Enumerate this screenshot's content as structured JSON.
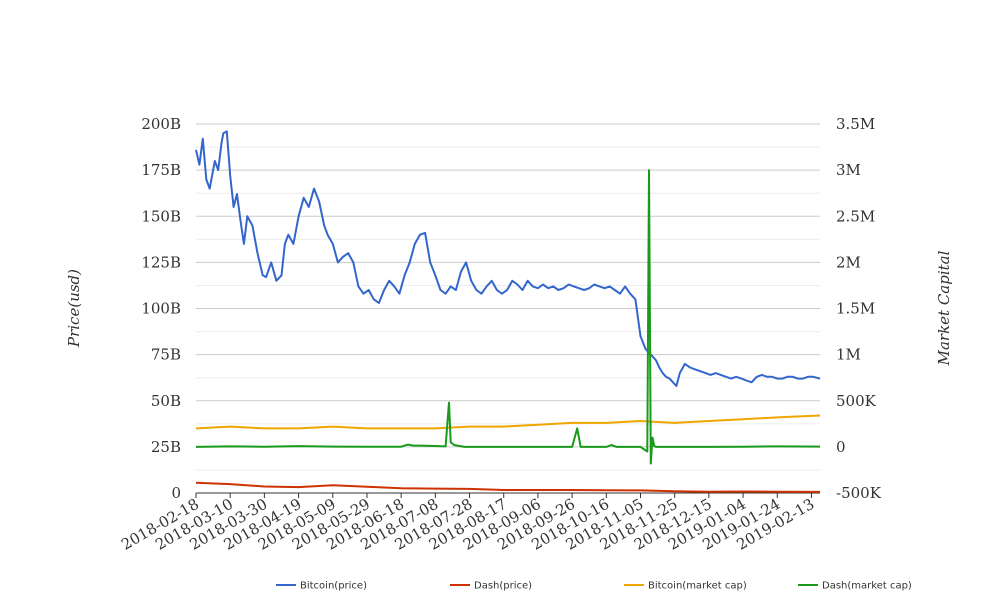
{
  "chart_data": {
    "type": "line",
    "title": "",
    "y_left_label": "Price(usd)",
    "y_right_label": "Market Capital",
    "y_left_ticks": [
      "0",
      "25B",
      "50B",
      "75B",
      "100B",
      "125B",
      "150B",
      "175B",
      "200B"
    ],
    "y_left_range": [
      0,
      200
    ],
    "y_left_unit": "B",
    "y_right_ticks": [
      "-500K",
      "0",
      "500K",
      "1M",
      "1.5M",
      "2M",
      "2.5M",
      "3M",
      "3.5M"
    ],
    "y_right_range": [
      -500000,
      3500000
    ],
    "x_ticks": [
      "2018-02-18",
      "2018-03-10",
      "2018-03-30",
      "2018-04-19",
      "2018-05-09",
      "2018-05-29",
      "2018-06-18",
      "2018-07-08",
      "2018-07-28",
      "2018-08-17",
      "2018-09-06",
      "2018-09-26",
      "2018-10-16",
      "2018-11-05",
      "2018-11-25",
      "2018-12-15",
      "2019-01-04",
      "2019-01-24",
      "2019-02-13"
    ],
    "x_range": [
      "2018-02-18",
      "2019-02-18"
    ],
    "grid": true,
    "legend_position": "bottom",
    "series": [
      {
        "name": "Bitcoin(price)",
        "axis": "left",
        "color": "#3366cc",
        "x": [
          "2018-02-18",
          "2018-02-20",
          "2018-02-22",
          "2018-02-24",
          "2018-02-26",
          "2018-03-01",
          "2018-03-03",
          "2018-03-05",
          "2018-03-06",
          "2018-03-08",
          "2018-03-10",
          "2018-03-12",
          "2018-03-14",
          "2018-03-16",
          "2018-03-18",
          "2018-03-20",
          "2018-03-23",
          "2018-03-26",
          "2018-03-29",
          "2018-03-31",
          "2018-04-03",
          "2018-04-06",
          "2018-04-09",
          "2018-04-11",
          "2018-04-13",
          "2018-04-16",
          "2018-04-19",
          "2018-04-22",
          "2018-04-25",
          "2018-04-28",
          "2018-05-01",
          "2018-05-04",
          "2018-05-06",
          "2018-05-09",
          "2018-05-12",
          "2018-05-15",
          "2018-05-18",
          "2018-05-21",
          "2018-05-24",
          "2018-05-27",
          "2018-05-30",
          "2018-06-02",
          "2018-06-05",
          "2018-06-08",
          "2018-06-11",
          "2018-06-14",
          "2018-06-17",
          "2018-06-20",
          "2018-06-23",
          "2018-06-26",
          "2018-06-29",
          "2018-07-02",
          "2018-07-05",
          "2018-07-08",
          "2018-07-11",
          "2018-07-14",
          "2018-07-17",
          "2018-07-20",
          "2018-07-23",
          "2018-07-26",
          "2018-07-29",
          "2018-08-01",
          "2018-08-04",
          "2018-08-07",
          "2018-08-10",
          "2018-08-13",
          "2018-08-16",
          "2018-08-19",
          "2018-08-22",
          "2018-08-25",
          "2018-08-28",
          "2018-08-31",
          "2018-09-03",
          "2018-09-06",
          "2018-09-09",
          "2018-09-12",
          "2018-09-15",
          "2018-09-18",
          "2018-09-21",
          "2018-09-24",
          "2018-09-27",
          "2018-09-30",
          "2018-10-03",
          "2018-10-06",
          "2018-10-09",
          "2018-10-12",
          "2018-10-15",
          "2018-10-18",
          "2018-10-21",
          "2018-10-24",
          "2018-10-27",
          "2018-10-30",
          "2018-11-02",
          "2018-11-05",
          "2018-11-08",
          "2018-11-11",
          "2018-11-14",
          "2018-11-16",
          "2018-11-18",
          "2018-11-20",
          "2018-11-22",
          "2018-11-24",
          "2018-11-26",
          "2018-11-28",
          "2018-12-01",
          "2018-12-04",
          "2018-12-07",
          "2018-12-10",
          "2018-12-13",
          "2018-12-16",
          "2018-12-19",
          "2018-12-22",
          "2018-12-25",
          "2018-12-28",
          "2018-12-31",
          "2019-01-03",
          "2019-01-06",
          "2019-01-09",
          "2019-01-12",
          "2019-01-15",
          "2019-01-18",
          "2019-01-21",
          "2019-01-24",
          "2019-01-27",
          "2019-01-30",
          "2019-02-02",
          "2019-02-05",
          "2019-02-08",
          "2019-02-11",
          "2019-02-14",
          "2019-02-18"
        ],
        "y": [
          186,
          178,
          192,
          170,
          165,
          180,
          175,
          190,
          195,
          196,
          172,
          155,
          162,
          148,
          135,
          150,
          145,
          130,
          118,
          117,
          125,
          115,
          118,
          135,
          140,
          135,
          150,
          160,
          155,
          165,
          158,
          145,
          140,
          135,
          125,
          128,
          130,
          125,
          112,
          108,
          110,
          105,
          103,
          110,
          115,
          112,
          108,
          118,
          125,
          135,
          140,
          141,
          125,
          118,
          110,
          108,
          112,
          110,
          120,
          125,
          115,
          110,
          108,
          112,
          115,
          110,
          108,
          110,
          115,
          113,
          110,
          115,
          112,
          111,
          113,
          111,
          112,
          110,
          111,
          113,
          112,
          111,
          110,
          111,
          113,
          112,
          111,
          112,
          110,
          108,
          112,
          108,
          105,
          85,
          78,
          75,
          72,
          68,
          65,
          63,
          62,
          60,
          58,
          65,
          70,
          68,
          67,
          66,
          65,
          64,
          65,
          64,
          63,
          62,
          63,
          62,
          61,
          60,
          63,
          64,
          63,
          63,
          62,
          62,
          63,
          63,
          62,
          62,
          63,
          63,
          62
        ]
      },
      {
        "name": "Dash(price)",
        "axis": "left",
        "color": "#cc3300",
        "x": [
          "2018-02-18",
          "2018-03-10",
          "2018-03-30",
          "2018-04-19",
          "2018-05-09",
          "2018-05-29",
          "2018-06-18",
          "2018-07-08",
          "2018-07-28",
          "2018-08-17",
          "2018-09-06",
          "2018-09-26",
          "2018-10-16",
          "2018-11-05",
          "2018-11-25",
          "2018-12-15",
          "2019-01-04",
          "2019-01-24",
          "2019-02-18"
        ],
        "y": [
          5.6,
          4.8,
          3.5,
          3.2,
          4.2,
          3.4,
          2.6,
          2.4,
          2.2,
          1.6,
          1.6,
          1.6,
          1.5,
          1.4,
          1.0,
          0.7,
          0.8,
          0.7,
          0.6
        ]
      },
      {
        "name": "Bitcoin(market cap)",
        "axis": "left",
        "color": "#f0a500",
        "x": [
          "2018-02-18",
          "2018-03-10",
          "2018-03-30",
          "2018-04-19",
          "2018-05-09",
          "2018-05-29",
          "2018-06-18",
          "2018-07-08",
          "2018-07-28",
          "2018-08-17",
          "2018-09-06",
          "2018-09-26",
          "2018-10-16",
          "2018-11-05",
          "2018-11-25",
          "2018-12-15",
          "2019-01-04",
          "2019-01-24",
          "2019-02-18"
        ],
        "y": [
          35,
          36,
          35,
          35,
          36,
          35,
          35,
          35,
          36,
          36,
          37,
          38,
          38,
          39,
          38,
          39,
          40,
          41,
          42
        ]
      },
      {
        "name": "Dash(market cap)",
        "axis": "right",
        "color": "#1a9a1a",
        "x": [
          "2018-02-18",
          "2018-03-10",
          "2018-03-30",
          "2018-04-19",
          "2018-05-09",
          "2018-05-29",
          "2018-06-18",
          "2018-06-22",
          "2018-06-25",
          "2018-07-08",
          "2018-07-14",
          "2018-07-16",
          "2018-07-17",
          "2018-07-19",
          "2018-07-25",
          "2018-08-17",
          "2018-09-06",
          "2018-09-26",
          "2018-09-29",
          "2018-10-01",
          "2018-10-03",
          "2018-10-10",
          "2018-10-16",
          "2018-10-19",
          "2018-10-22",
          "2018-11-05",
          "2018-11-09",
          "2018-11-10",
          "2018-11-11",
          "2018-11-12",
          "2018-11-13",
          "2018-11-14",
          "2018-11-25",
          "2018-12-15",
          "2019-01-04",
          "2019-01-24",
          "2019-02-18"
        ],
        "y": [
          0,
          5000,
          2000,
          8000,
          3000,
          1000,
          2000,
          25000,
          15000,
          10000,
          5000,
          480000,
          50000,
          20000,
          0,
          0,
          0,
          0,
          200000,
          0,
          0,
          0,
          0,
          20000,
          0,
          0,
          -50000,
          3000000,
          -180000,
          100000,
          10000,
          0,
          0,
          0,
          2000,
          5000,
          3000
        ]
      }
    ]
  }
}
